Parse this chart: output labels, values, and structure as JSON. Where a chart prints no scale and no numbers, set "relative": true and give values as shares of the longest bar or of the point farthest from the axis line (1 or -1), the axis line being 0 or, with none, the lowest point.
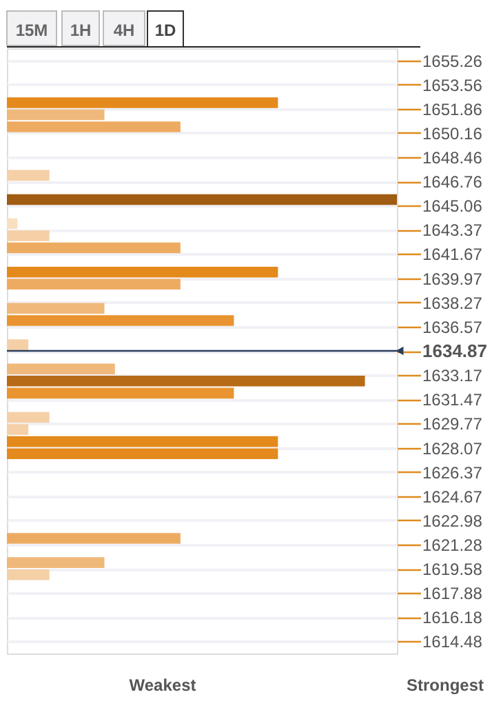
{
  "chart_data": {
    "type": "bar",
    "orientation": "horizontal",
    "relative": true,
    "x": [
      1652.29,
      1651.44,
      1650.59,
      1647.19,
      1645.49,
      1643.8,
      1642.95,
      1642.1,
      1640.4,
      1639.55,
      1637.85,
      1637.0,
      1635.3,
      1633.6,
      1632.75,
      1631.9,
      1630.2,
      1629.35,
      1628.5,
      1627.65,
      1621.71,
      1620.01,
      1619.16
    ],
    "values": [
      0.695,
      0.25,
      0.445,
      0.109,
      1.0,
      0.027,
      0.109,
      0.445,
      0.695,
      0.445,
      0.25,
      0.582,
      0.055,
      0.277,
      0.918,
      0.582,
      0.109,
      0.055,
      0.695,
      0.695,
      0.445,
      0.25,
      0.109
    ],
    "colors": [
      "#e4891c",
      "#efb97b",
      "#edab62",
      "#f5d0a6",
      "#a05c12",
      "#f8dfc0",
      "#f5d0a6",
      "#edab62",
      "#e4891c",
      "#edab62",
      "#efb97b",
      "#e99431",
      "#f5d0a6",
      "#efb97b",
      "#b86b17",
      "#e99431",
      "#f5d0a6",
      "#f5d0a6",
      "#e4891c",
      "#e4891c",
      "#edab62",
      "#efb97b",
      "#f5d0a6"
    ],
    "ylim": [
      1613.63,
      1656.11
    ],
    "yticks": [
      1655.26,
      1653.56,
      1651.86,
      1650.16,
      1648.46,
      1646.76,
      1645.06,
      1643.37,
      1641.67,
      1639.97,
      1638.27,
      1636.57,
      1634.87,
      1633.17,
      1631.47,
      1629.77,
      1628.07,
      1626.37,
      1624.67,
      1622.98,
      1621.28,
      1619.58,
      1617.88,
      1616.18,
      1614.48
    ],
    "ref_lines": [
      {
        "axis": "y",
        "value": 1634.87,
        "color": "#2c3e5c"
      }
    ],
    "grid": true,
    "annotations": [
      "15M",
      "1H",
      "4H",
      "1D",
      "Weakest",
      "Strongest"
    ]
  }
}
